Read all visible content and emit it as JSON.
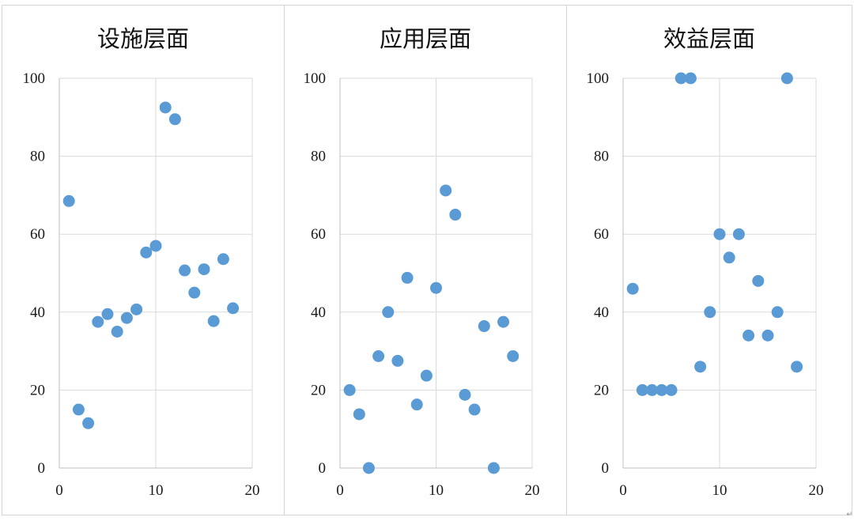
{
  "chart_data": [
    {
      "type": "scatter",
      "title": "设施层面",
      "xlabel": "",
      "ylabel": "",
      "xlim": [
        0,
        20
      ],
      "ylim": [
        0,
        100
      ],
      "x_ticks": [
        "0",
        "10",
        "20"
      ],
      "y_ticks": [
        "0",
        "20",
        "40",
        "60",
        "80",
        "100"
      ],
      "grid": true,
      "marker_color": "#5b9bd5",
      "points": [
        {
          "x": 1,
          "y": 68.5
        },
        {
          "x": 2,
          "y": 15
        },
        {
          "x": 3,
          "y": 11.5
        },
        {
          "x": 4,
          "y": 37.5
        },
        {
          "x": 5,
          "y": 39.5
        },
        {
          "x": 6,
          "y": 35
        },
        {
          "x": 7,
          "y": 38.5
        },
        {
          "x": 8,
          "y": 40.7
        },
        {
          "x": 9,
          "y": 55.3
        },
        {
          "x": 10,
          "y": 57
        },
        {
          "x": 11,
          "y": 92.5
        },
        {
          "x": 12,
          "y": 89.5
        },
        {
          "x": 13,
          "y": 50.7
        },
        {
          "x": 14,
          "y": 45
        },
        {
          "x": 15,
          "y": 51
        },
        {
          "x": 16,
          "y": 37.7
        },
        {
          "x": 17,
          "y": 53.6
        },
        {
          "x": 18,
          "y": 41
        }
      ]
    },
    {
      "type": "scatter",
      "title": "应用层面",
      "xlabel": "",
      "ylabel": "",
      "xlim": [
        0,
        20
      ],
      "ylim": [
        0,
        100
      ],
      "x_ticks": [
        "0",
        "10",
        "20"
      ],
      "y_ticks": [
        "0",
        "20",
        "40",
        "60",
        "80",
        "100"
      ],
      "grid": true,
      "marker_color": "#5b9bd5",
      "points": [
        {
          "x": 1,
          "y": 20
        },
        {
          "x": 2,
          "y": 13.8
        },
        {
          "x": 3,
          "y": 0
        },
        {
          "x": 4,
          "y": 28.7
        },
        {
          "x": 5,
          "y": 40
        },
        {
          "x": 6,
          "y": 27.5
        },
        {
          "x": 7,
          "y": 48.8
        },
        {
          "x": 8,
          "y": 16.3
        },
        {
          "x": 9,
          "y": 23.7
        },
        {
          "x": 10,
          "y": 46.2
        },
        {
          "x": 11,
          "y": 71.2
        },
        {
          "x": 12,
          "y": 65
        },
        {
          "x": 13,
          "y": 18.8
        },
        {
          "x": 14,
          "y": 15
        },
        {
          "x": 15,
          "y": 36.4
        },
        {
          "x": 16,
          "y": 0
        },
        {
          "x": 17,
          "y": 37.5
        },
        {
          "x": 18,
          "y": 28.7
        }
      ]
    },
    {
      "type": "scatter",
      "title": "效益层面",
      "xlabel": "",
      "ylabel": "",
      "xlim": [
        0,
        20
      ],
      "ylim": [
        0,
        100
      ],
      "x_ticks": [
        "0",
        "10",
        "20"
      ],
      "y_ticks": [
        "0",
        "20",
        "40",
        "60",
        "80",
        "100"
      ],
      "grid": true,
      "marker_color": "#5b9bd5",
      "points": [
        {
          "x": 1,
          "y": 46
        },
        {
          "x": 2,
          "y": 20
        },
        {
          "x": 3,
          "y": 20
        },
        {
          "x": 4,
          "y": 20
        },
        {
          "x": 5,
          "y": 20
        },
        {
          "x": 6,
          "y": 100
        },
        {
          "x": 7,
          "y": 100
        },
        {
          "x": 8,
          "y": 26
        },
        {
          "x": 9,
          "y": 40
        },
        {
          "x": 10,
          "y": 60
        },
        {
          "x": 11,
          "y": 54
        },
        {
          "x": 12,
          "y": 60
        },
        {
          "x": 13,
          "y": 34
        },
        {
          "x": 14,
          "y": 48
        },
        {
          "x": 15,
          "y": 34
        },
        {
          "x": 16,
          "y": 40
        },
        {
          "x": 17,
          "y": 100
        },
        {
          "x": 18,
          "y": 26
        }
      ]
    }
  ]
}
